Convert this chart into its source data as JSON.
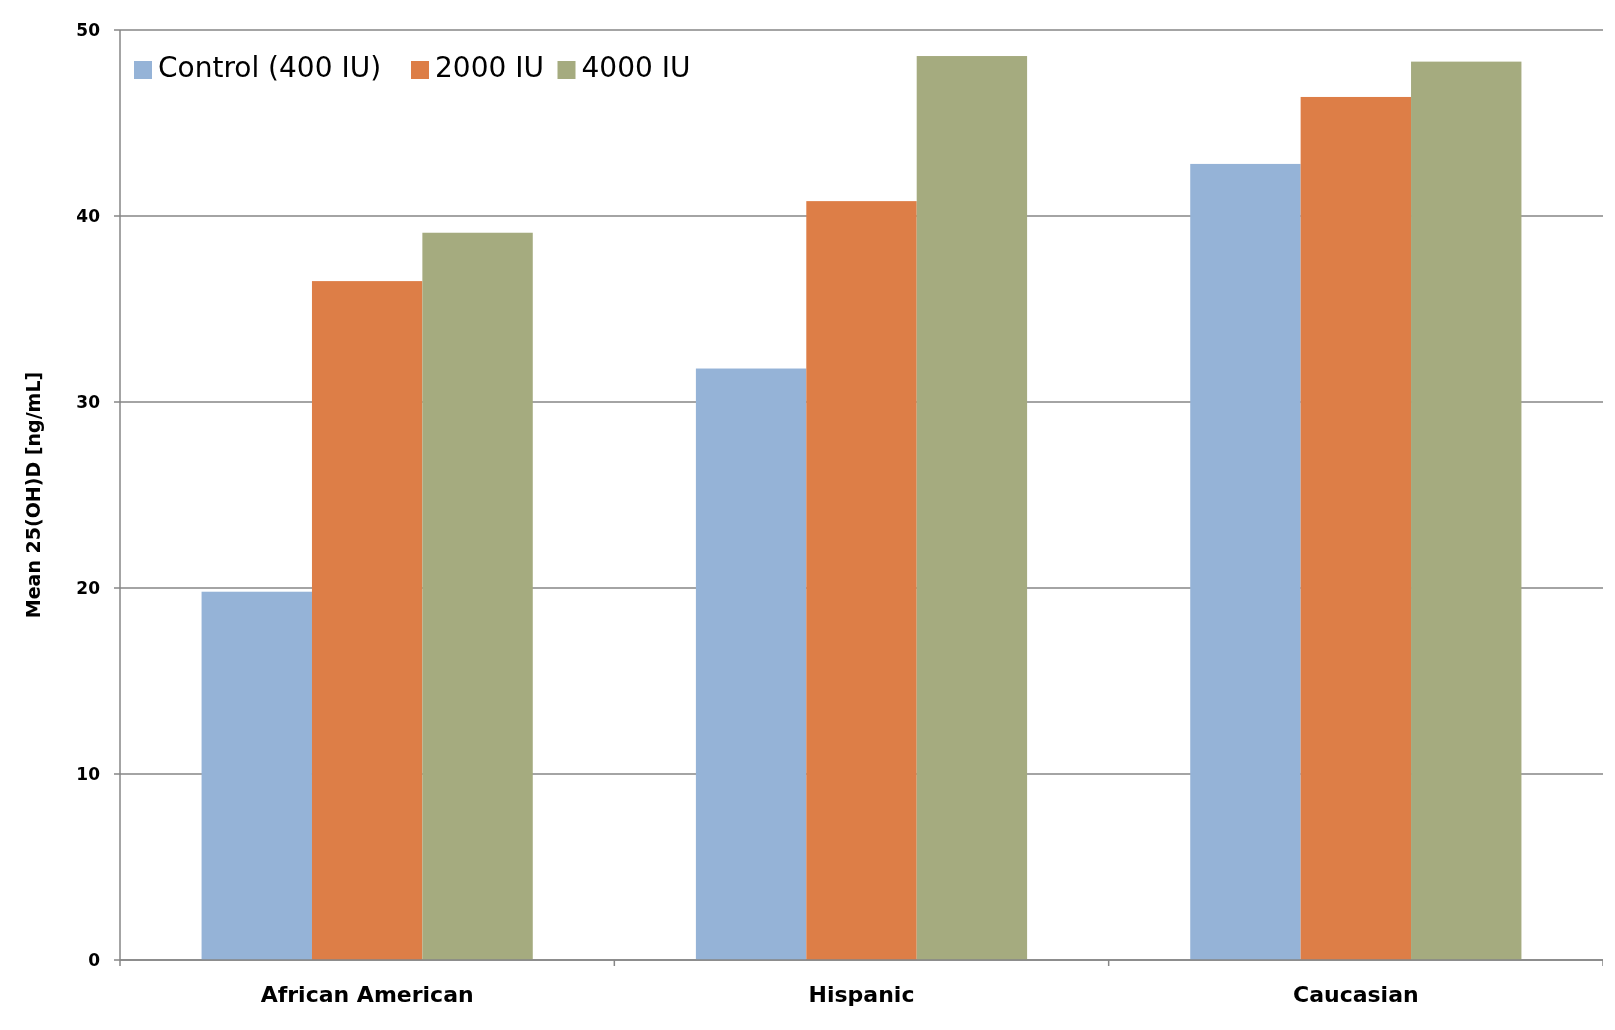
{
  "chart_data": {
    "type": "bar",
    "ylabel": "Mean 25(OH)D [ng/mL]",
    "categories": [
      "African American",
      "Hispanic",
      "Caucasian"
    ],
    "series": [
      {
        "name": "Control (400 IU)",
        "color": "#95b3d7",
        "values": [
          19.8,
          31.8,
          42.8
        ]
      },
      {
        "name": "2000 IU",
        "color": "#dd7e47",
        "values": [
          36.5,
          40.8,
          46.4
        ]
      },
      {
        "name": "4000 IU",
        "color": "#a5ab7f",
        "values": [
          39.1,
          48.6,
          48.3
        ]
      }
    ],
    "ylim": [
      0,
      50
    ],
    "yticks": [
      0,
      10,
      20,
      30,
      40,
      50
    ],
    "grid": "y",
    "legend": "top left"
  }
}
